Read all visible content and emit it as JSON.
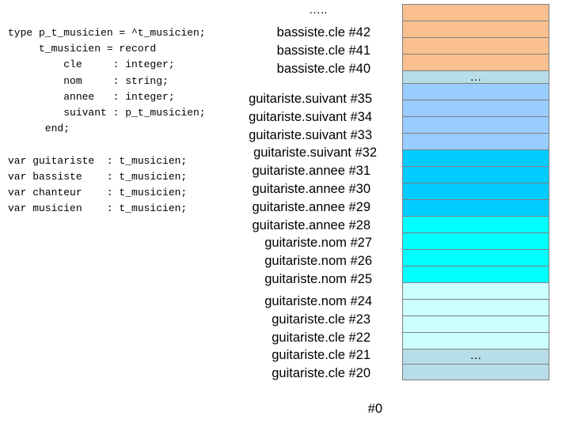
{
  "code": {
    "lines": [
      "type p_t_musicien = ^t_musicien;",
      "     t_musicien = record",
      "         cle     : integer;",
      "         nom     : string;",
      "         annee   : integer;",
      "         suivant : p_t_musicien;",
      "      end;",
      "",
      "var guitariste  : t_musicien;",
      "var bassiste    : t_musicien;",
      "var chanteur    : t_musicien;",
      "var musicien    : t_musicien;"
    ]
  },
  "top_ellipsis": "…..",
  "labels": [
    "bassiste.cle #42",
    "bassiste.cle #41",
    "bassiste.cle #40",
    "guitariste.suivant #35",
    "guitariste.suivant #34",
    "guitariste.suivant #33",
    "guitariste.suivant #32",
    "guitariste.annee #31",
    "guitariste.annee #30",
    "guitariste.annee #29",
    "guitariste.annee #28",
    "guitariste.nom #27",
    "guitariste.nom #26",
    "guitariste.nom #25",
    "guitariste.nom #24",
    "guitariste.cle #23",
    "guitariste.cle #22",
    "guitariste.cle #21",
    "guitariste.cle #20",
    "#0"
  ],
  "memory": {
    "cells": [
      {
        "color": "#fac090",
        "text": ""
      },
      {
        "color": "#fac090",
        "text": ""
      },
      {
        "color": "#fac090",
        "text": ""
      },
      {
        "color": "#fac090",
        "text": ""
      },
      {
        "color": "#b7dde8",
        "text": "…"
      },
      {
        "color": "#99ccff",
        "text": ""
      },
      {
        "color": "#99ccff",
        "text": ""
      },
      {
        "color": "#99ccff",
        "text": ""
      },
      {
        "color": "#99ccff",
        "text": ""
      },
      {
        "color": "#00ccff",
        "text": ""
      },
      {
        "color": "#00ccff",
        "text": ""
      },
      {
        "color": "#00ccff",
        "text": ""
      },
      {
        "color": "#00ccff",
        "text": ""
      },
      {
        "color": "#00ffff",
        "text": ""
      },
      {
        "color": "#00ffff",
        "text": ""
      },
      {
        "color": "#00ffff",
        "text": ""
      },
      {
        "color": "#00ffff",
        "text": ""
      },
      {
        "color": "#ccffff",
        "text": ""
      },
      {
        "color": "#ccffff",
        "text": ""
      },
      {
        "color": "#ccffff",
        "text": ""
      },
      {
        "color": "#ccffff",
        "text": ""
      },
      {
        "color": "#b7dde8",
        "text": "…"
      },
      {
        "color": "#b7dde8",
        "text": ""
      }
    ]
  }
}
